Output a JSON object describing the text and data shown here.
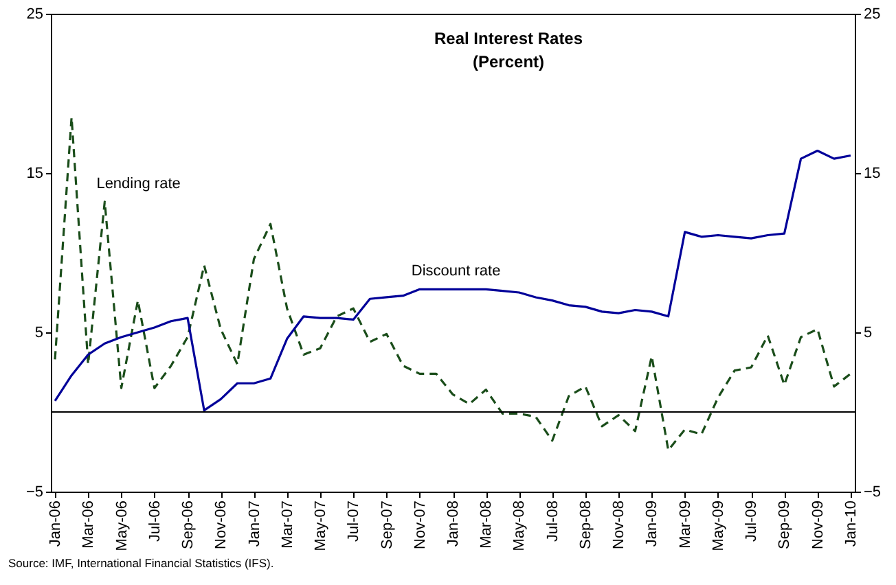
{
  "chart_data": {
    "type": "line",
    "title": "Real Interest Rates",
    "subtitle": "(Percent)",
    "categories": [
      "Jan-06",
      null,
      "Mar-06",
      null,
      "May-06",
      null,
      "Jul-06",
      null,
      "Sep-06",
      null,
      "Nov-06",
      null,
      "Jan-07",
      null,
      "Mar-07",
      null,
      "May-07",
      null,
      "Jul-07",
      null,
      "Sep-07",
      null,
      "Nov-07",
      null,
      "Jan-08",
      null,
      "Mar-08",
      null,
      "May-08",
      null,
      "Jul-08",
      null,
      "Sep-08",
      null,
      "Nov-08",
      null,
      "Jan-09",
      null,
      "Mar-09",
      null,
      "May-09",
      null,
      "Jul-09",
      null,
      "Sep-09",
      null,
      "Nov-09",
      null,
      "Jan-10"
    ],
    "series": [
      {
        "name": "Lending rate",
        "color": "#1a4d1a",
        "line_style": "dashed",
        "values": [
          3.3,
          18.5,
          3.0,
          13.2,
          1.5,
          7.0,
          1.5,
          2.9,
          4.7,
          9.2,
          5.2,
          3.0,
          9.6,
          11.8,
          6.5,
          3.6,
          4.0,
          6.0,
          6.5,
          4.4,
          4.9,
          2.9,
          2.4,
          2.4,
          1.1,
          0.5,
          1.4,
          -0.1,
          -0.1,
          -0.3,
          -1.8,
          1.0,
          1.6,
          -0.9,
          -0.2,
          -1.2,
          3.5,
          -2.4,
          -1.1,
          -1.4,
          0.9,
          2.6,
          2.8,
          4.8,
          1.7,
          4.7,
          5.2,
          1.6,
          2.4
        ]
      },
      {
        "name": "Discount rate",
        "color": "#000099",
        "line_style": "solid",
        "values": [
          0.7,
          2.3,
          3.6,
          4.3,
          4.7,
          5.0,
          5.3,
          5.7,
          5.9,
          0.1,
          0.8,
          1.8,
          1.8,
          2.1,
          4.6,
          6.0,
          5.9,
          5.9,
          5.8,
          7.1,
          7.2,
          7.3,
          7.7,
          7.7,
          7.7,
          7.7,
          7.7,
          7.6,
          7.5,
          7.2,
          7.0,
          6.7,
          6.6,
          6.3,
          6.2,
          6.4,
          6.3,
          6.0,
          11.3,
          11.0,
          11.1,
          11.0,
          10.9,
          11.1,
          11.2,
          15.9,
          16.4,
          15.9,
          16.1
        ]
      }
    ],
    "ylim": [
      -5,
      25
    ],
    "yticks": [
      -5,
      5,
      15,
      25
    ],
    "y2lim": [
      -5,
      25
    ],
    "y2ticks": [
      -5,
      5,
      15,
      25
    ],
    "ref_lines": [
      {
        "axis": "y",
        "value": 0,
        "color": "#000000"
      }
    ],
    "grid": false,
    "marker": "none",
    "annotations": [
      "Source: IMF, International Financial Statistics (IFS)."
    ]
  }
}
